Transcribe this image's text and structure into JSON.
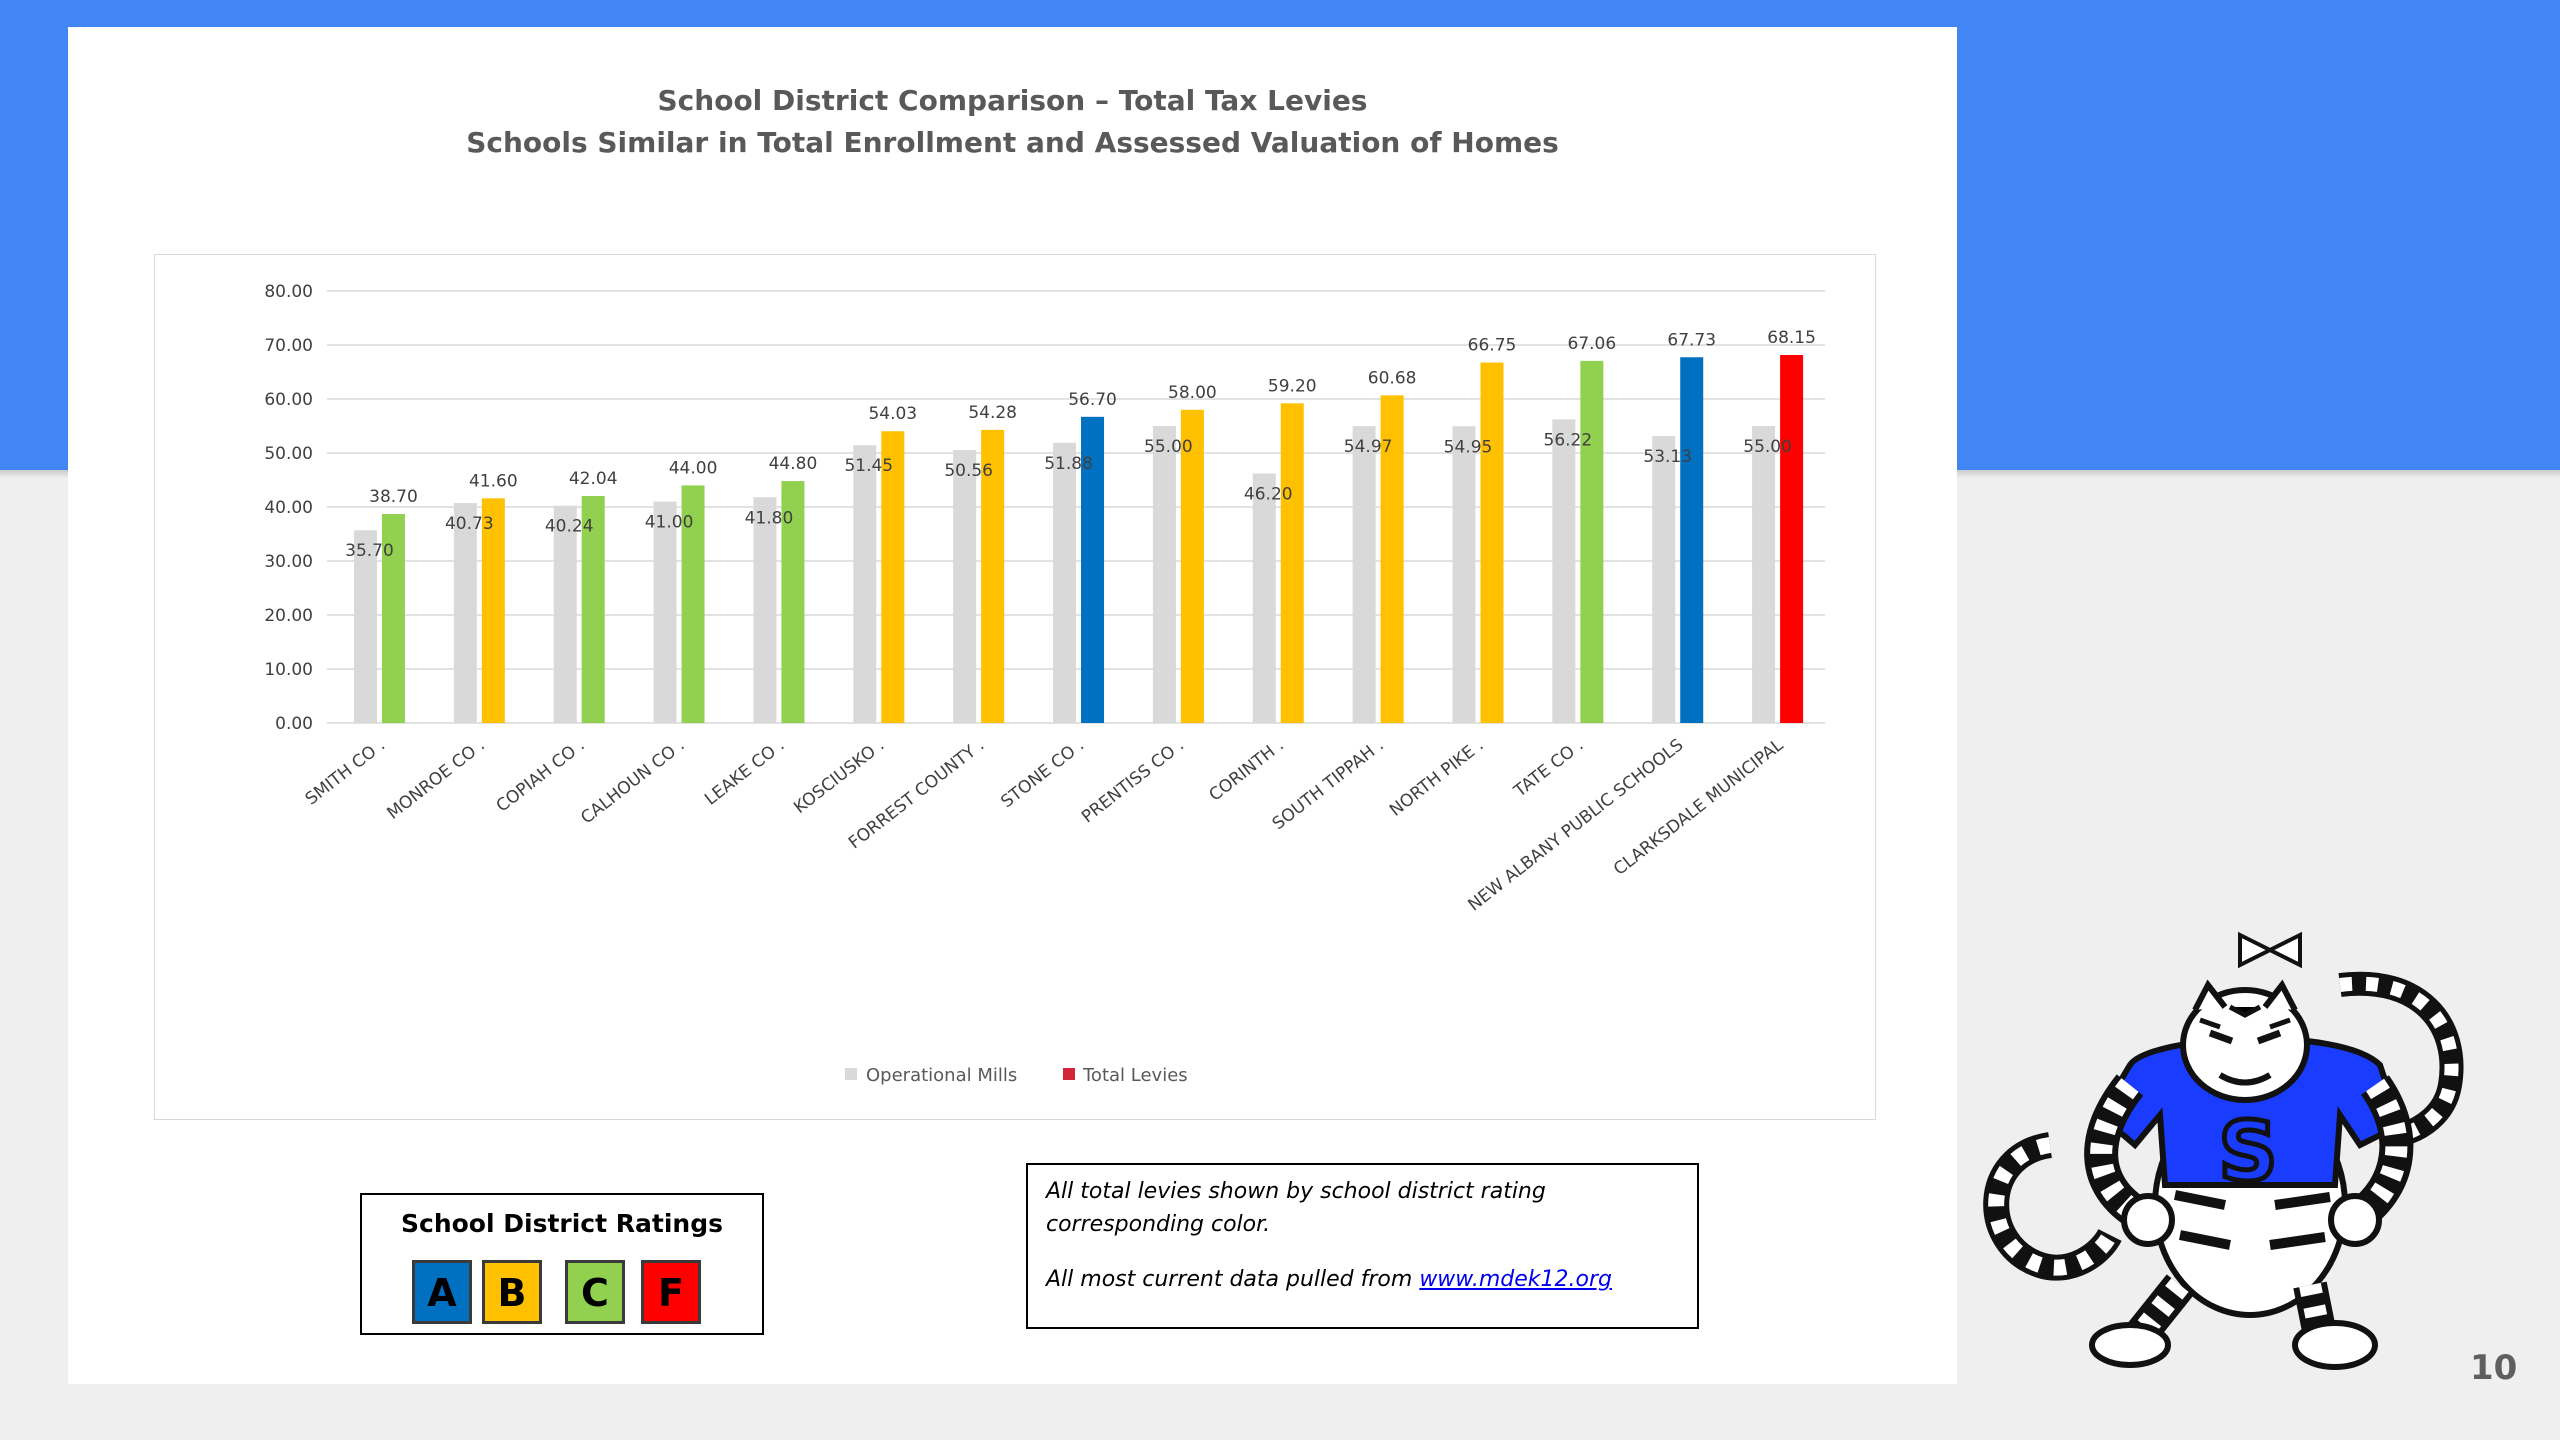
{
  "slide": {
    "title_line1": "School District Comparison – Total Tax Levies",
    "title_line2": "Schools Similar in Total Enrollment and Assessed Valuation of Homes",
    "page_number": "10",
    "colors": {
      "band": "#4285f4",
      "background": "#efefef",
      "card": "#ffffff"
    }
  },
  "chart_data": {
    "type": "bar",
    "title": "",
    "xlabel": "",
    "ylabel": "",
    "ylim": [
      0,
      80
    ],
    "yticks": [
      "0.00",
      "10.00",
      "20.00",
      "30.00",
      "40.00",
      "50.00",
      "60.00",
      "70.00",
      "80.00"
    ],
    "grid": true,
    "legend_position": "bottom",
    "categories": [
      "SMITH CO .",
      "MONROE CO .",
      "COPIAH CO .",
      "CALHOUN CO .",
      "LEAKE CO .",
      "KOSCIUSKO .",
      "FORREST COUNTY .",
      "STONE CO .",
      "PRENTISS CO .",
      "CORINTH .",
      "SOUTH TIPPAH .",
      "NORTH PIKE .",
      "TATE CO .",
      "NEW ALBANY PUBLIC SCHOOLS",
      "CLARKSDALE MUNICIPAL"
    ],
    "series": [
      {
        "name": "Operational Mills",
        "color": "#d9d9d9",
        "values": [
          35.7,
          40.73,
          40.24,
          41.0,
          41.8,
          51.45,
          50.56,
          51.88,
          55.0,
          46.2,
          54.97,
          54.95,
          56.22,
          53.13,
          55.0
        ],
        "labels": [
          "35.70",
          "40.73",
          "40.24",
          "41.00",
          "41.80",
          "51.45",
          "50.56",
          "51.88",
          "55.00",
          "46.20",
          "54.97",
          "54.95",
          "56.22",
          "53.13",
          "55.00"
        ]
      },
      {
        "name": "Total Levies",
        "legend_color": "#d4263a",
        "values": [
          38.7,
          41.6,
          42.04,
          44.0,
          44.8,
          54.03,
          54.28,
          56.7,
          58.0,
          59.2,
          60.68,
          66.75,
          67.06,
          67.73,
          68.15
        ],
        "labels": [
          "38.70",
          "41.60",
          "42.04",
          "44.00",
          "44.80",
          "54.03",
          "54.28",
          "56.70",
          "58.00",
          "59.20",
          "60.68",
          "66.75",
          "67.06",
          "67.73",
          "68.15"
        ],
        "ratings": [
          "C",
          "B",
          "C",
          "C",
          "C",
          "B",
          "B",
          "A",
          "B",
          "B",
          "B",
          "B",
          "C",
          "A",
          "F"
        ]
      }
    ]
  },
  "ratings_legend": {
    "title": "School District Ratings",
    "items": [
      {
        "letter": "A",
        "color": "#0070c0"
      },
      {
        "letter": "B",
        "color": "#ffc000"
      },
      {
        "letter": "C",
        "color": "#92d050"
      },
      {
        "letter": "F",
        "color": "#ff0000"
      }
    ]
  },
  "note": {
    "line1": "All total levies shown by school district rating corresponding color.",
    "line2_prefix": "All most current data pulled from ",
    "link_text": "www.mdek12.org"
  },
  "mascot": {
    "icon": "striped-tiger-mascot-icon",
    "letter": "S"
  }
}
